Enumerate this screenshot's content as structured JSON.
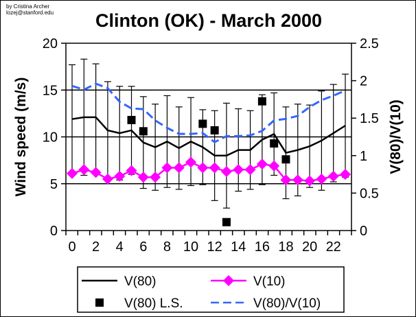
{
  "credit": {
    "line1": "by Cristina Archer",
    "line2": "lozej@stanford.edu"
  },
  "chart_data": {
    "type": "line",
    "title": "Clinton (OK) - March 2000",
    "xlabel": "",
    "ylabel": "Wind speed (m/s)",
    "y2label": "V(80)/V(10)",
    "xlim": [
      0,
      23
    ],
    "ylim": [
      0,
      20
    ],
    "y2lim": [
      0,
      2.5
    ],
    "xticks": [
      "0",
      "2",
      "4",
      "6",
      "8",
      "10",
      "12",
      "14",
      "16",
      "18",
      "20",
      "22"
    ],
    "yticks": [
      "0",
      "5",
      "10",
      "15",
      "20"
    ],
    "y2ticks": [
      "0",
      "0.5",
      "1",
      "1.5",
      "2",
      "2.5"
    ],
    "grid": "horizontal",
    "legend_position": "bottom",
    "x": [
      0,
      1,
      2,
      3,
      4,
      5,
      6,
      7,
      8,
      9,
      10,
      11,
      12,
      13,
      14,
      15,
      16,
      17,
      18,
      19,
      20,
      21,
      22,
      23
    ],
    "series": [
      {
        "name": "V(80)",
        "axis": "left",
        "color": "#000000",
        "values": [
          11.9,
          12.1,
          12.1,
          10.7,
          10.4,
          10.7,
          9.4,
          8.9,
          9.5,
          8.8,
          9.5,
          8.9,
          8.0,
          8.0,
          8.6,
          8.6,
          9.7,
          10.3,
          8.3,
          8.6,
          9.0,
          9.6,
          10.4,
          11.2
        ],
        "error_upper": [
          17.7,
          18.3,
          17.8,
          15.9,
          15.4,
          15.4,
          14.3,
          13.5,
          14.4,
          13.2,
          14.2,
          12.9,
          12.8,
          13.6,
          13.0,
          12.8,
          14.5,
          14.7,
          13.2,
          13.5,
          13.4,
          14.9,
          15.6,
          16.7
        ],
        "error_lower": [
          6.1,
          5.9,
          6.4,
          5.5,
          5.4,
          6.0,
          4.5,
          4.3,
          4.6,
          4.4,
          4.8,
          4.9,
          3.2,
          2.4,
          4.2,
          4.4,
          4.9,
          5.9,
          3.4,
          3.7,
          4.6,
          4.3,
          5.2,
          5.7
        ]
      },
      {
        "name": "V(10)",
        "axis": "left",
        "color": "#ff00ff",
        "values": [
          6.1,
          6.5,
          6.2,
          5.5,
          5.8,
          6.4,
          5.7,
          5.7,
          6.7,
          6.7,
          7.3,
          6.7,
          6.7,
          6.3,
          6.5,
          6.5,
          7.1,
          6.9,
          5.4,
          5.4,
          5.3,
          5.5,
          5.8,
          6.0
        ]
      },
      {
        "name": "V(80) L.S.",
        "axis": "left",
        "color": "#000000",
        "x": [
          5,
          6,
          11,
          12,
          13,
          16,
          17,
          18
        ],
        "values": [
          11.8,
          10.6,
          11.4,
          10.7,
          0.9,
          13.8,
          9.3,
          7.6
        ]
      },
      {
        "name": "V(80)/V(10)",
        "axis": "right",
        "color": "#3366ff",
        "values": [
          1.93,
          1.88,
          1.96,
          1.9,
          1.72,
          1.63,
          1.62,
          1.47,
          1.37,
          1.29,
          1.29,
          1.3,
          1.18,
          1.26,
          1.26,
          1.27,
          1.33,
          1.47,
          1.49,
          1.53,
          1.65,
          1.74,
          1.8,
          1.87
        ]
      }
    ]
  }
}
